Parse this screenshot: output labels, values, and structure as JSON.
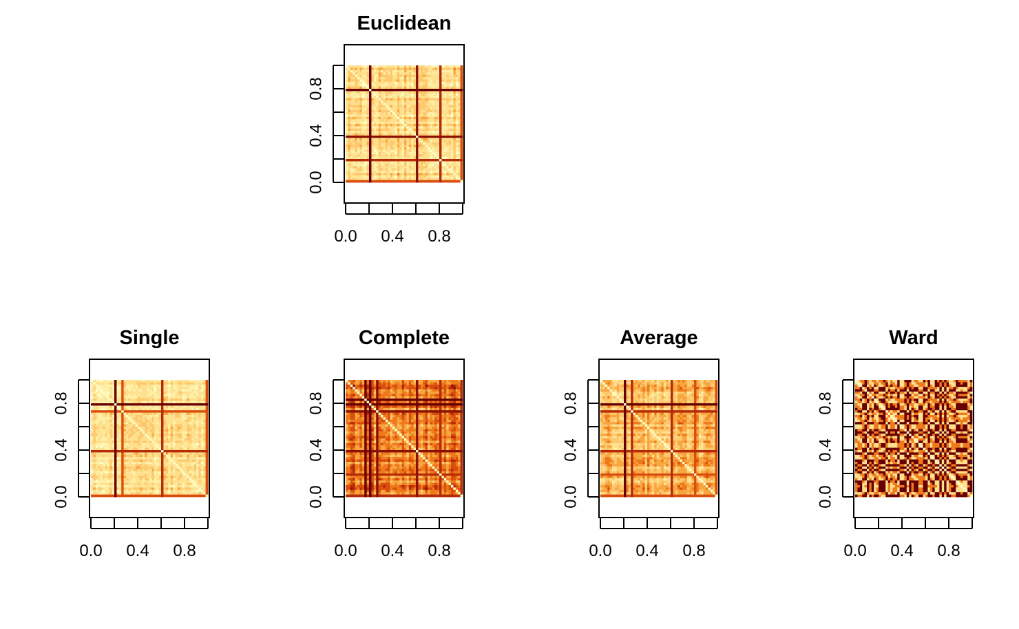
{
  "colors": {
    "background": "#ffffff",
    "axis": "#000000",
    "palette_heat": [
      "#FFFFC8",
      "#FFF0A8",
      "#FEE08E",
      "#FDC86E",
      "#F8A640",
      "#EF7A1C",
      "#D94E0E",
      "#B52A08",
      "#8A1106",
      "#680004"
    ]
  },
  "chart_data": [
    {
      "id": "euclidean",
      "type": "heatmap",
      "title": "Euclidean",
      "xlabel": "",
      "ylabel": "",
      "xlim": [
        0,
        1
      ],
      "ylim": [
        0,
        1
      ],
      "x_ticks": [
        "0.0",
        "0.4",
        "0.8"
      ],
      "y_ticks": [
        "0.0",
        "0.4",
        "0.8"
      ],
      "grid": false,
      "legend": "none",
      "matrix_size": 50,
      "diagonal_value": 0,
      "strong_rows": [
        {
          "index": 10,
          "level": 9
        },
        {
          "index": 30,
          "level": 8
        },
        {
          "index": 40,
          "level": 7
        },
        {
          "index": 49,
          "level": 6
        }
      ],
      "value_range": [
        0,
        9
      ],
      "base_levels": [
        1,
        4
      ]
    },
    {
      "id": "single",
      "type": "heatmap",
      "title": "Single",
      "xlabel": "",
      "ylabel": "",
      "xlim": [
        0,
        1
      ],
      "ylim": [
        0,
        1
      ],
      "x_ticks": [
        "0.0",
        "0.4",
        "0.8"
      ],
      "y_ticks": [
        "0.0",
        "0.4",
        "0.8"
      ],
      "grid": false,
      "legend": "none",
      "matrix_size": 50,
      "diagonal_value": 0,
      "strong_rows": [
        {
          "index": 10,
          "level": 9
        },
        {
          "index": 13,
          "level": 6
        },
        {
          "index": 30,
          "level": 7
        },
        {
          "index": 49,
          "level": 6
        }
      ],
      "value_range": [
        0,
        9
      ],
      "base_levels": [
        1,
        3
      ]
    },
    {
      "id": "complete",
      "type": "heatmap",
      "title": "Complete",
      "xlabel": "",
      "ylabel": "",
      "xlim": [
        0,
        1
      ],
      "ylim": [
        0,
        1
      ],
      "x_ticks": [
        "0.0",
        "0.4",
        "0.8"
      ],
      "y_ticks": [
        "0.0",
        "0.4",
        "0.8"
      ],
      "grid": false,
      "legend": "none",
      "matrix_size": 50,
      "diagonal_value": 0,
      "strong_rows": [
        {
          "index": 8,
          "level": 9
        },
        {
          "index": 10,
          "level": 9
        },
        {
          "index": 13,
          "level": 8
        },
        {
          "index": 30,
          "level": 8
        },
        {
          "index": 40,
          "level": 7
        },
        {
          "index": 49,
          "level": 7
        }
      ],
      "value_range": [
        0,
        9
      ],
      "base_levels": [
        3,
        7
      ]
    },
    {
      "id": "average",
      "type": "heatmap",
      "title": "Average",
      "xlabel": "",
      "ylabel": "",
      "xlim": [
        0,
        1
      ],
      "ylim": [
        0,
        1
      ],
      "x_ticks": [
        "0.0",
        "0.4",
        "0.8"
      ],
      "y_ticks": [
        "0.0",
        "0.4",
        "0.8"
      ],
      "grid": false,
      "legend": "none",
      "matrix_size": 50,
      "diagonal_value": 0,
      "strong_rows": [
        {
          "index": 10,
          "level": 9
        },
        {
          "index": 13,
          "level": 7
        },
        {
          "index": 30,
          "level": 7
        },
        {
          "index": 40,
          "level": 6
        },
        {
          "index": 49,
          "level": 6
        }
      ],
      "value_range": [
        0,
        9
      ],
      "base_levels": [
        2,
        5
      ]
    },
    {
      "id": "ward",
      "type": "heatmap",
      "title": "Ward",
      "xlabel": "",
      "ylabel": "",
      "xlim": [
        0,
        1
      ],
      "ylim": [
        0,
        1
      ],
      "x_ticks": [
        "0.0",
        "0.4",
        "0.8"
      ],
      "y_ticks": [
        "0.0",
        "0.4",
        "0.8"
      ],
      "grid": false,
      "legend": "none",
      "matrix_size": 50,
      "diagonal_value": 0,
      "strong_rows": [],
      "value_range": [
        0,
        9
      ],
      "base_levels": [
        1,
        9
      ],
      "blocky": true
    }
  ]
}
